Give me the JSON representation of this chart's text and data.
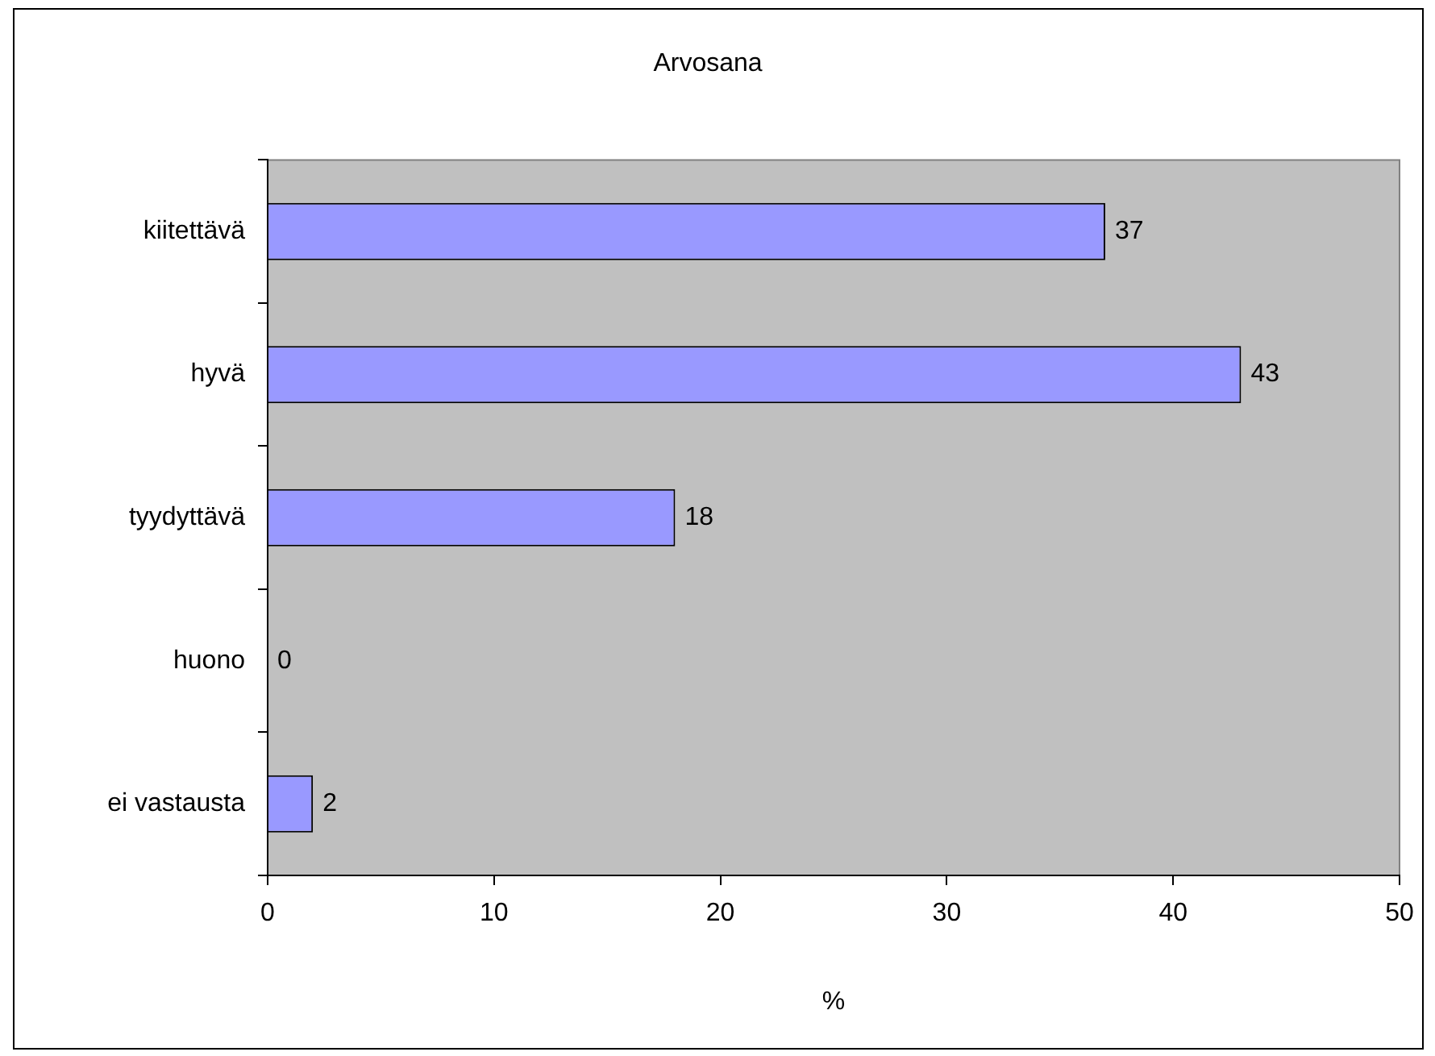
{
  "chart_data": {
    "type": "bar",
    "orientation": "horizontal",
    "title": "Arvosana",
    "xlabel": "%",
    "categories": [
      "kiitettävä",
      "hyvä",
      "tyydyttävä",
      "huono",
      "ei vastausta"
    ],
    "values": [
      37,
      43,
      18,
      0,
      2
    ],
    "color": "#9999ff",
    "xlim": [
      0,
      50
    ],
    "xticks": [
      0,
      10,
      20,
      30,
      40,
      50
    ],
    "grid": false,
    "data_labels": true,
    "legend": false
  }
}
